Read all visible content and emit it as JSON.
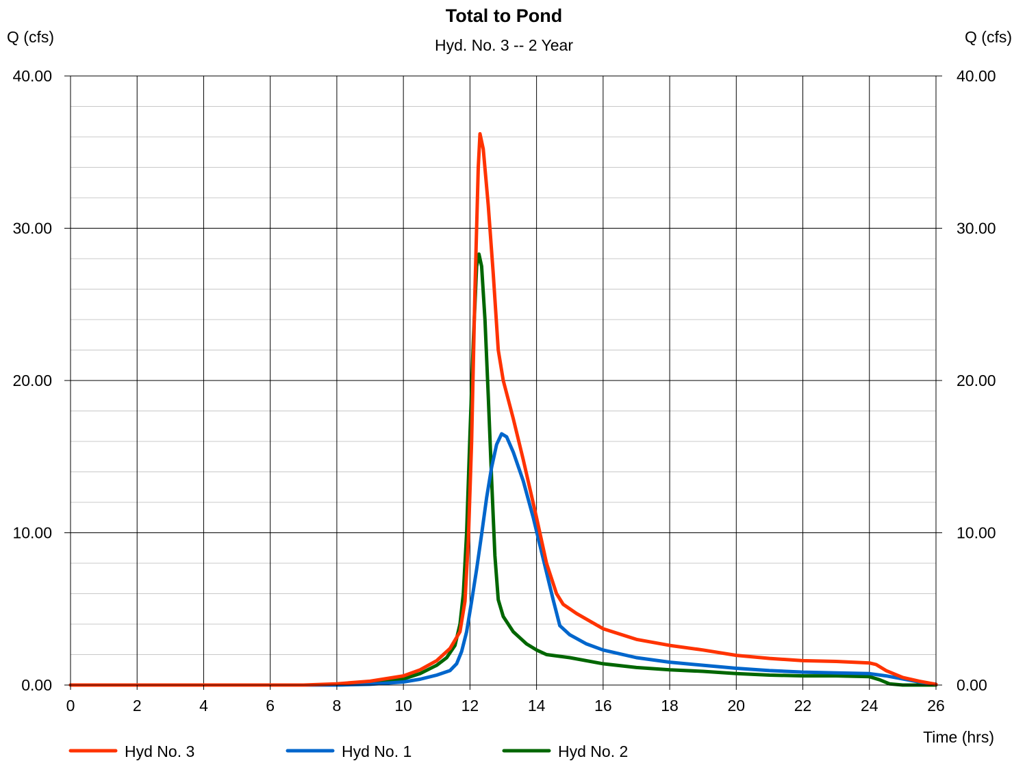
{
  "chart_data": {
    "type": "line",
    "title": "Total to Pond",
    "subtitle": "Hyd. No. 3 -- 2 Year",
    "ylabel_left": "Q (cfs)",
    "ylabel_right": "Q (cfs)",
    "xlabel": "Time (hrs)",
    "xlim": [
      0,
      26
    ],
    "ylim": [
      0,
      40
    ],
    "x_ticks": [
      0,
      2,
      4,
      6,
      8,
      10,
      12,
      14,
      16,
      18,
      20,
      22,
      24,
      26
    ],
    "x_tick_labels": [
      "0",
      "2",
      "4",
      "6",
      "8",
      "10",
      "12",
      "14",
      "16",
      "18",
      "20",
      "22",
      "24",
      "26"
    ],
    "y_ticks": [
      0,
      10,
      20,
      30,
      40
    ],
    "y_tick_labels": [
      "0.00",
      "10.00",
      "20.00",
      "30.00",
      "40.00"
    ],
    "y_minor_step": 2,
    "grid": true,
    "legend_position": "bottom-left",
    "series": [
      {
        "name": "Hyd No. 3",
        "color": "#ff3300",
        "points": [
          [
            0,
            0
          ],
          [
            7,
            0
          ],
          [
            8,
            0.08
          ],
          [
            9,
            0.25
          ],
          [
            10,
            0.6
          ],
          [
            10.5,
            1.0
          ],
          [
            11,
            1.6
          ],
          [
            11.4,
            2.4
          ],
          [
            11.7,
            3.5
          ],
          [
            11.85,
            5.5
          ],
          [
            11.95,
            9.5
          ],
          [
            12.05,
            16
          ],
          [
            12.15,
            26
          ],
          [
            12.25,
            34
          ],
          [
            12.3,
            36.2
          ],
          [
            12.4,
            35.2
          ],
          [
            12.55,
            31.5
          ],
          [
            12.7,
            27
          ],
          [
            12.85,
            22
          ],
          [
            13.0,
            20
          ],
          [
            13.3,
            17.5
          ],
          [
            13.6,
            14.8
          ],
          [
            14.0,
            11
          ],
          [
            14.3,
            8
          ],
          [
            14.6,
            6
          ],
          [
            14.8,
            5.3
          ],
          [
            15.2,
            4.7
          ],
          [
            16,
            3.7
          ],
          [
            17,
            3.0
          ],
          [
            18,
            2.6
          ],
          [
            19,
            2.3
          ],
          [
            20,
            1.95
          ],
          [
            21,
            1.75
          ],
          [
            22,
            1.6
          ],
          [
            23,
            1.55
          ],
          [
            24,
            1.45
          ],
          [
            24.2,
            1.35
          ],
          [
            24.5,
            0.95
          ],
          [
            25,
            0.5
          ],
          [
            25.5,
            0.25
          ],
          [
            26,
            0.05
          ]
        ]
      },
      {
        "name": "Hyd No. 1",
        "color": "#0066cc",
        "points": [
          [
            0,
            0
          ],
          [
            8,
            0
          ],
          [
            9,
            0.05
          ],
          [
            10,
            0.2
          ],
          [
            10.5,
            0.38
          ],
          [
            11,
            0.65
          ],
          [
            11.4,
            0.95
          ],
          [
            11.6,
            1.4
          ],
          [
            11.75,
            2.2
          ],
          [
            11.9,
            3.5
          ],
          [
            12.05,
            5.5
          ],
          [
            12.2,
            7.6
          ],
          [
            12.35,
            9.9
          ],
          [
            12.5,
            12.3
          ],
          [
            12.65,
            14.3
          ],
          [
            12.8,
            15.8
          ],
          [
            12.95,
            16.5
          ],
          [
            13.1,
            16.3
          ],
          [
            13.3,
            15.3
          ],
          [
            13.6,
            13.4
          ],
          [
            13.9,
            11.0
          ],
          [
            14.2,
            8.3
          ],
          [
            14.5,
            5.6
          ],
          [
            14.7,
            3.9
          ],
          [
            15.0,
            3.3
          ],
          [
            15.5,
            2.7
          ],
          [
            16,
            2.3
          ],
          [
            17,
            1.8
          ],
          [
            18,
            1.5
          ],
          [
            19,
            1.3
          ],
          [
            20,
            1.1
          ],
          [
            21,
            0.95
          ],
          [
            22,
            0.85
          ],
          [
            23,
            0.8
          ],
          [
            24,
            0.75
          ],
          [
            24.5,
            0.6
          ],
          [
            25,
            0.4
          ],
          [
            25.5,
            0.2
          ],
          [
            26,
            0.05
          ]
        ]
      },
      {
        "name": "Hyd No. 2",
        "color": "#006600",
        "points": [
          [
            0,
            0
          ],
          [
            8,
            0
          ],
          [
            9,
            0.08
          ],
          [
            10,
            0.4
          ],
          [
            10.5,
            0.75
          ],
          [
            11,
            1.3
          ],
          [
            11.3,
            1.8
          ],
          [
            11.55,
            2.6
          ],
          [
            11.7,
            4.0
          ],
          [
            11.8,
            6.0
          ],
          [
            11.9,
            10
          ],
          [
            12.0,
            16.5
          ],
          [
            12.1,
            22.5
          ],
          [
            12.2,
            27.5
          ],
          [
            12.27,
            28.3
          ],
          [
            12.35,
            27.5
          ],
          [
            12.45,
            24
          ],
          [
            12.55,
            19
          ],
          [
            12.65,
            13.5
          ],
          [
            12.75,
            8.5
          ],
          [
            12.85,
            5.6
          ],
          [
            13.0,
            4.5
          ],
          [
            13.3,
            3.5
          ],
          [
            13.7,
            2.7
          ],
          [
            14.0,
            2.3
          ],
          [
            14.3,
            2.0
          ],
          [
            15,
            1.8
          ],
          [
            16,
            1.4
          ],
          [
            17,
            1.15
          ],
          [
            18,
            1.0
          ],
          [
            19,
            0.9
          ],
          [
            20,
            0.75
          ],
          [
            21,
            0.65
          ],
          [
            22,
            0.6
          ],
          [
            23,
            0.6
          ],
          [
            24,
            0.55
          ],
          [
            24.3,
            0.35
          ],
          [
            24.6,
            0.08
          ],
          [
            25,
            0
          ],
          [
            26,
            0
          ]
        ]
      }
    ]
  }
}
